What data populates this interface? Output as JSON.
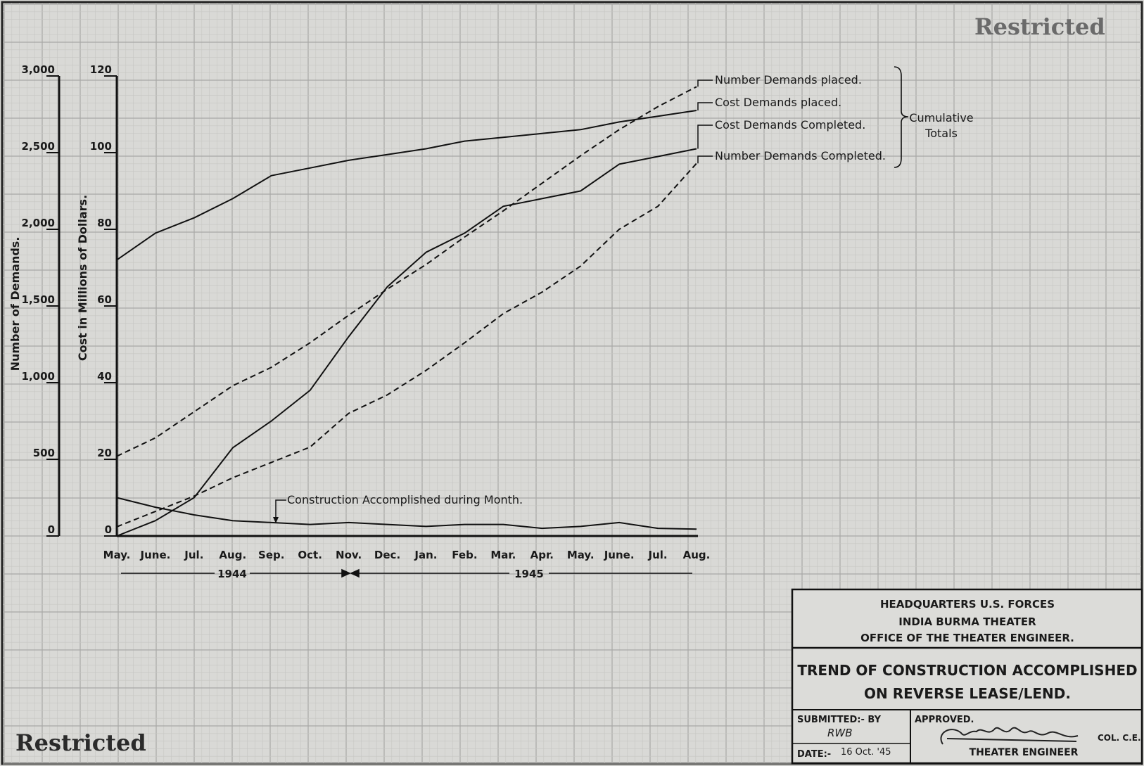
{
  "header": {
    "stamp_top": "Restricted",
    "stamp_bottom": "Restricted"
  },
  "chart_data": {
    "type": "line",
    "title": "TREND OF CONSTRUCTION ACCOMPLISHED ON REVERSE LEASE/LEND.",
    "categories": [
      "May.",
      "June.",
      "Jul.",
      "Aug.",
      "Sep.",
      "Oct.",
      "Nov.",
      "Dec.",
      "Jan.",
      "Feb.",
      "Mar.",
      "Apr.",
      "May.",
      "June.",
      "Jul.",
      "Aug."
    ],
    "year_labels": [
      "1944",
      "1945"
    ],
    "y_left_outer": {
      "label": "Number of Demands.",
      "range": [
        0,
        3000
      ],
      "ticks": [
        "0",
        "500",
        "1,000",
        "1,500",
        "2,000",
        "2,500",
        "3,000"
      ]
    },
    "y_left_inner": {
      "label": "Cost in Millions of Dollars.",
      "range": [
        0,
        120
      ],
      "ticks": [
        "0",
        "20",
        "40",
        "60",
        "80",
        "100",
        "120"
      ]
    },
    "grid": true,
    "series": [
      {
        "name": "Number Demands placed.",
        "axis": "count",
        "style": "dashed",
        "values": [
          520,
          640,
          810,
          980,
          1100,
          1260,
          1440,
          1610,
          1770,
          1950,
          2120,
          2300,
          2480,
          2650,
          2800,
          2930
        ]
      },
      {
        "name": "Cost Demands placed.",
        "axis": "cost",
        "style": "solid",
        "values": [
          72,
          79,
          83,
          88,
          94,
          96,
          98,
          99.5,
          101,
          103,
          104,
          105,
          106,
          108,
          109.5,
          111
        ]
      },
      {
        "name": "Cost Demands Completed.",
        "axis": "cost",
        "style": "solid",
        "values": [
          0,
          4,
          10,
          23,
          30,
          38,
          52,
          65,
          74,
          79,
          86,
          88,
          90,
          97,
          99,
          101
        ]
      },
      {
        "name": "Number Demands Completed.",
        "axis": "count",
        "style": "dashed",
        "values": [
          60,
          160,
          260,
          380,
          480,
          580,
          800,
          920,
          1080,
          1260,
          1450,
          1590,
          1760,
          2000,
          2150,
          2430
        ]
      },
      {
        "name": "Construction Accomplished during Month.",
        "axis": "cost",
        "style": "solid",
        "values": [
          10,
          7.5,
          5.5,
          4,
          3.5,
          3,
          3.5,
          3,
          2.5,
          3,
          3,
          2,
          2.5,
          3.5,
          2,
          1.8
        ]
      }
    ],
    "legend_bracket": "Cumulative Totals",
    "legend_position": "top-right"
  },
  "title_block": {
    "org_line1": "HEADQUARTERS U.S. FORCES",
    "org_line2": "INDIA BURMA THEATER",
    "org_line3": "OFFICE OF THE THEATER ENGINEER.",
    "title_line1": "TREND OF CONSTRUCTION ACCOMPLISHED",
    "title_line2": "ON REVERSE LEASE/LEND.",
    "submitted_label": "SUBMITTED:- BY",
    "submitted_initials": "RWB",
    "date_label": "DATE:-",
    "date_value": "16 Oct. '45",
    "approved_label": "APPROVED.",
    "rank": "COL. C.E.",
    "approver_title": "THEATER ENGINEER"
  }
}
